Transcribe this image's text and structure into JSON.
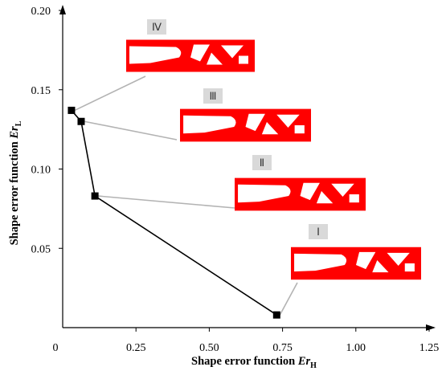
{
  "chart_data": {
    "type": "scatter",
    "xlabel_main": "Shape error function ",
    "xlabel_var": "Er",
    "xlabel_sub": "H",
    "ylabel_main": "Shape error function ",
    "ylabel_var": "Er",
    "ylabel_sub": "L",
    "xlim": [
      0,
      1.25
    ],
    "ylim": [
      0,
      0.2
    ],
    "x_ticks": [
      "0",
      "0.25",
      "0.50",
      "0.75",
      "1.00",
      "1.25"
    ],
    "y_ticks": [
      "0.05",
      "0.10",
      "0.15",
      "0.20"
    ],
    "series": [
      {
        "points": [
          {
            "x": 0.03,
            "y": 0.137
          },
          {
            "x": 0.063,
            "y": 0.13
          },
          {
            "x": 0.11,
            "y": 0.083
          },
          {
            "x": 0.73,
            "y": 0.008
          }
        ]
      }
    ],
    "annotations": [
      {
        "label": "Ⅳ",
        "point_index": 0
      },
      {
        "label": "Ⅲ",
        "point_index": 1
      },
      {
        "label": "Ⅱ",
        "point_index": 2
      },
      {
        "label": "Ⅰ",
        "point_index": 3
      }
    ],
    "colors": {
      "line": "#000000",
      "leader": "#b3b3b3",
      "structure": "#ff0000",
      "label_box": "#d9d9d9"
    }
  }
}
